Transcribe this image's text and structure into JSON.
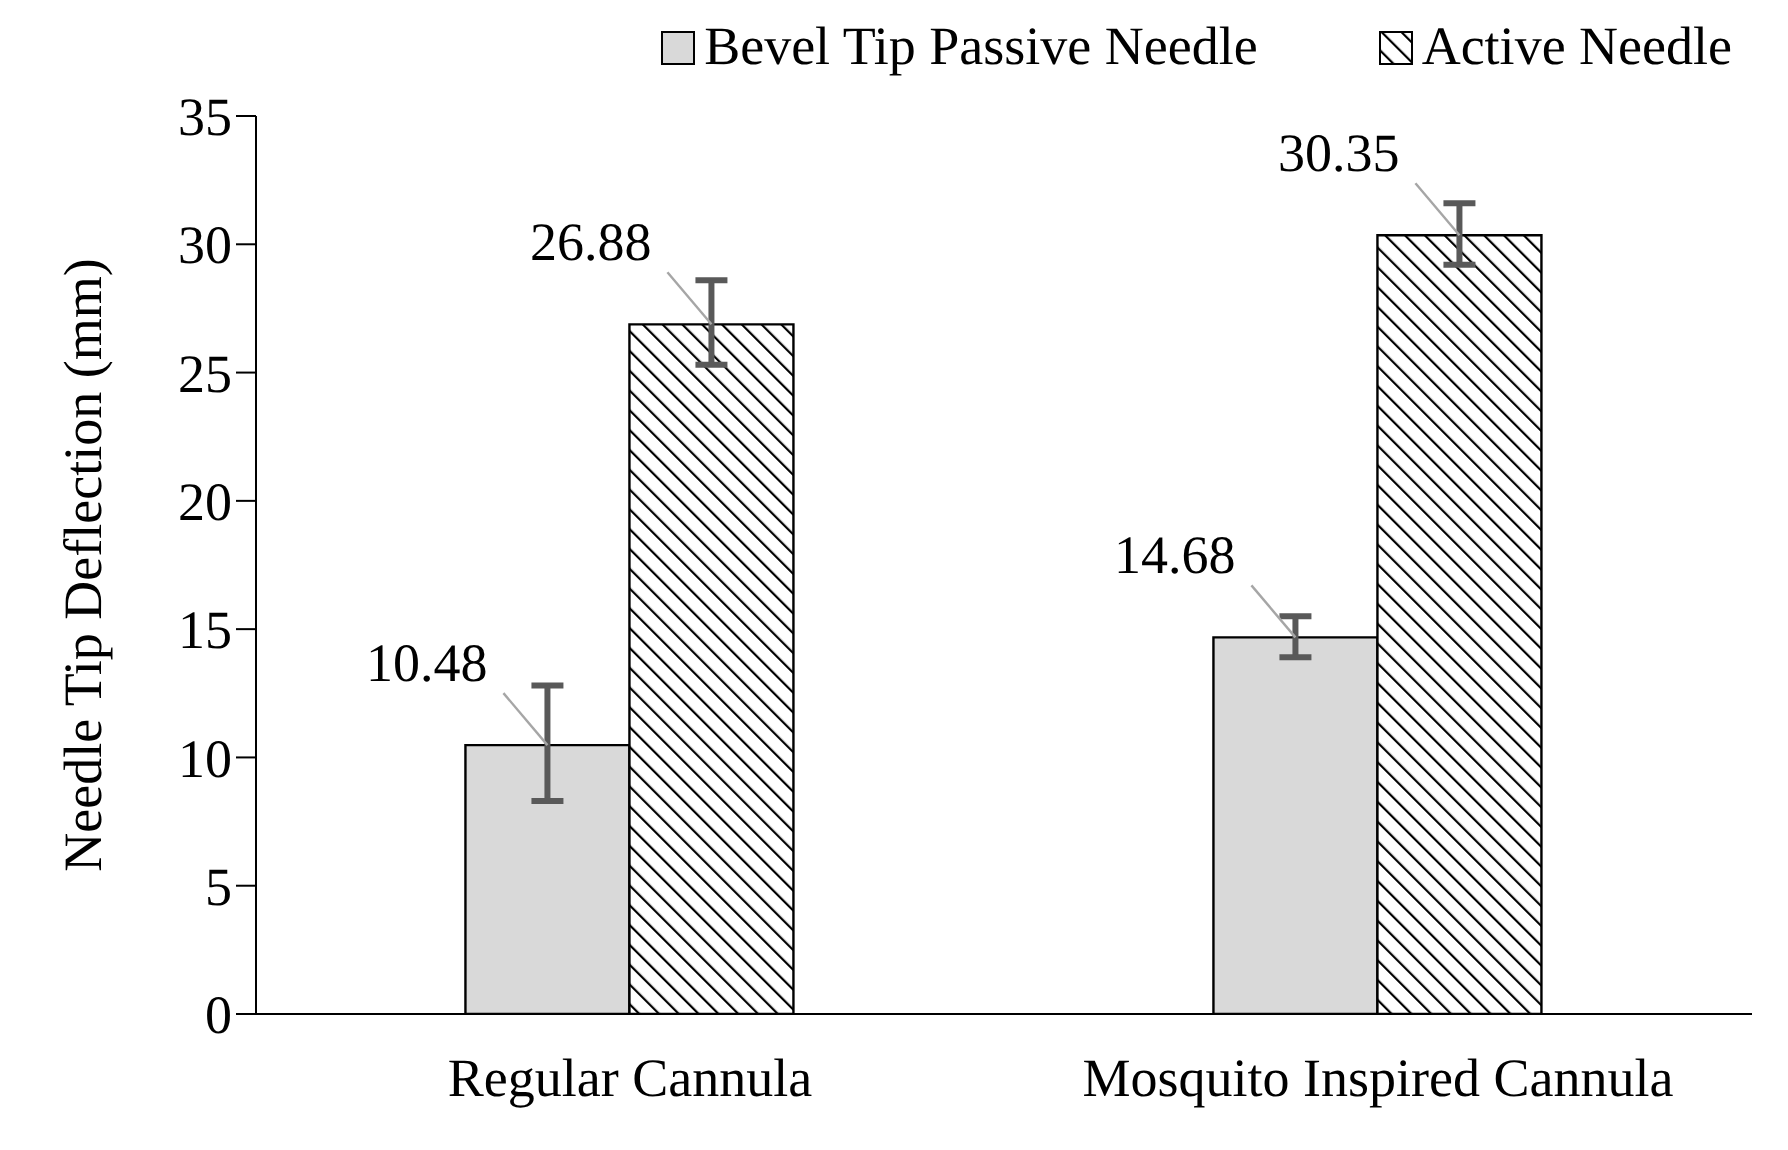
{
  "chart_data": {
    "type": "bar",
    "ylabel": "Needle Tip Deflection (mm)",
    "categories": [
      "Regular Cannula",
      "Mosquito Inspired Cannula"
    ],
    "series": [
      {
        "name": "Bevel Tip Passive Needle",
        "color": "#d9d9d9",
        "values": [
          10.48,
          14.68
        ],
        "errors": [
          [
            8.3,
            12.8
          ],
          [
            13.9,
            15.5
          ]
        ]
      },
      {
        "name": "Active Needle",
        "color": "#000000",
        "values": [
          26.88,
          30.35
        ],
        "errors": [
          [
            25.3,
            28.6
          ],
          [
            29.2,
            31.6
          ]
        ]
      }
    ],
    "ylim": [
      0,
      35
    ],
    "yticks": [
      0,
      5,
      10,
      15,
      20,
      25,
      30,
      35
    ],
    "grid": false,
    "legend": "top",
    "data_labels": true
  }
}
